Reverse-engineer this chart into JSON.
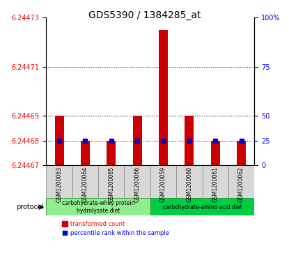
{
  "title": "GDS5390 / 1384285_at",
  "samples": [
    "GSM1200063",
    "GSM1200064",
    "GSM1200065",
    "GSM1200066",
    "GSM1200059",
    "GSM1200060",
    "GSM1200061",
    "GSM1200062"
  ],
  "transformed_count": [
    6.24469,
    6.24468,
    6.24468,
    6.24469,
    6.244725,
    6.24469,
    6.24468,
    6.24468
  ],
  "percentile_rank": [
    6.24468,
    6.24468,
    6.24468,
    6.24468,
    6.24468,
    6.24468,
    6.24468,
    6.24468
  ],
  "percentile_rank_pct": [
    25,
    25,
    25,
    25,
    25,
    25,
    25,
    25
  ],
  "y_min": 6.24467,
  "y_max": 6.24473,
  "y_ticks": [
    6.24467,
    6.24468,
    6.24469,
    6.24471,
    6.24473
  ],
  "y_ticks_labels": [
    "6.24467",
    "6.24468",
    "6.24469",
    "6.24471",
    "6.24473"
  ],
  "right_ticks": [
    0,
    25,
    50,
    75,
    100
  ],
  "right_tick_positions": [
    6.24467,
    6.24468,
    6.24469,
    6.24471,
    6.24473
  ],
  "bar_color": "#cc0000",
  "dot_color": "#0000cc",
  "group1_label": "carbohydrate-whey protein\nhydrolysate diet",
  "group2_label": "carbohydrate-amino acid diet",
  "group1_color": "#90ee90",
  "group2_color": "#00cc44",
  "group1_indices": [
    0,
    1,
    2,
    3
  ],
  "group2_indices": [
    4,
    5,
    6,
    7
  ],
  "protocol_label": "protocol",
  "legend_red_label": "transformed count",
  "legend_blue_label": "percentile rank within the sample",
  "grid_color": "#000000",
  "background_color": "#ffffff",
  "plot_area_bg": "#ffffff"
}
